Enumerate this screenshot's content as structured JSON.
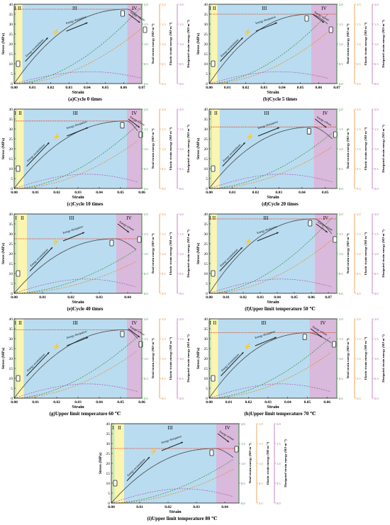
{
  "figure": {
    "xlabel": "Strain",
    "ylabel": "Stress (MPa)",
    "y2label": "Total strain energy (MJ·m⁻³)",
    "y3label": "Elastic strain energy (MJ·m⁻³)",
    "y4label": "Dissipated strain energy (MJ·m⁻³)",
    "stage_labels": [
      "I",
      "II",
      "III",
      "IV"
    ],
    "annotations": [
      "Energy accumulation",
      "Energy dissipation",
      "Energy release"
    ],
    "colors": {
      "stage_I": "#cfe8b4",
      "stage_II": "#fbf5b0",
      "stage_III": "#b9dcf0",
      "stage_IV": "#d9b9dc",
      "stress": "#555555",
      "peak_line": "#e03a1e",
      "total_energy": "#2e8b2e",
      "elastic_energy": "#e8821e",
      "dissipated_energy": "#b050b0"
    }
  },
  "chart_data": [
    {
      "caption": "(a)Cycle 0 times",
      "type": "line",
      "xlim": [
        0,
        0.07
      ],
      "xticks": [
        0.0,
        0.01,
        0.02,
        0.03,
        0.04,
        0.05,
        0.06,
        0.07
      ],
      "ylim": [
        0,
        40
      ],
      "yticks": [
        0,
        5,
        10,
        15,
        20,
        25,
        30,
        35,
        40
      ],
      "energy_ylim": [
        0,
        2.0
      ],
      "energy_yticks": [
        0.0,
        0.5,
        1.0,
        1.5,
        2.0
      ],
      "stage_bounds": [
        0.0012,
        0.0045,
        0.062
      ],
      "peak_strain": 0.062,
      "peak_stress": 37.5,
      "end_strain": 0.07,
      "end_stress": 32,
      "total_energy_end": 1.95,
      "elastic_energy_end": 1.4,
      "dissipated_energy_end": 0.25
    },
    {
      "caption": "(b)Cycle 5 times",
      "type": "line",
      "xlim": [
        0,
        0.07
      ],
      "xticks": [
        0.0,
        0.01,
        0.02,
        0.03,
        0.04,
        0.05,
        0.06,
        0.07
      ],
      "ylim": [
        0,
        40
      ],
      "yticks": [
        0,
        5,
        10,
        15,
        20,
        25,
        30,
        35,
        40
      ],
      "energy_ylim": [
        0,
        2.0
      ],
      "energy_yticks": [
        0.0,
        0.5,
        1.0,
        1.5,
        2.0
      ],
      "stage_bounds": [
        0.0012,
        0.0045,
        0.056
      ],
      "peak_strain": 0.056,
      "peak_stress": 35,
      "end_strain": 0.065,
      "end_stress": 30,
      "total_energy_end": 1.75,
      "elastic_energy_end": 1.3,
      "dissipated_energy_end": 0.25
    },
    {
      "caption": "(c)Cycle 10 times",
      "type": "line",
      "xlim": [
        0,
        0.06
      ],
      "xticks": [
        0.0,
        0.01,
        0.02,
        0.03,
        0.04,
        0.05,
        0.06
      ],
      "ylim": [
        0,
        40
      ],
      "yticks": [
        0,
        5,
        10,
        15,
        20,
        25,
        30,
        35,
        40
      ],
      "energy_ylim": [
        0,
        2.0
      ],
      "energy_yticks": [
        0.0,
        0.5,
        1.0,
        1.5,
        2.0
      ],
      "stage_bounds": [
        0.0012,
        0.0045,
        0.053
      ],
      "peak_strain": 0.053,
      "peak_stress": 34,
      "end_strain": 0.058,
      "end_stress": 29,
      "total_energy_end": 1.6,
      "elastic_energy_end": 1.2,
      "dissipated_energy_end": 0.3
    },
    {
      "caption": "(d)Cycle 20 times",
      "type": "line",
      "xlim": [
        0,
        0.055
      ],
      "xticks": [
        0.0,
        0.01,
        0.02,
        0.03,
        0.04,
        0.05
      ],
      "ylim": [
        0,
        40
      ],
      "yticks": [
        0,
        5,
        10,
        15,
        20,
        25,
        30,
        35,
        40
      ],
      "energy_ylim": [
        0,
        2.0
      ],
      "energy_yticks": [
        0.0,
        0.5,
        1.0,
        1.5,
        2.0
      ],
      "stage_bounds": [
        0.0012,
        0.0045,
        0.045
      ],
      "peak_strain": 0.045,
      "peak_stress": 31,
      "end_strain": 0.053,
      "end_stress": 25,
      "total_energy_end": 1.4,
      "elastic_energy_end": 1.05,
      "dissipated_energy_end": 0.3
    },
    {
      "caption": "(e)Cycle 40 times",
      "type": "line",
      "xlim": [
        0,
        0.045
      ],
      "xticks": [
        0.0,
        0.01,
        0.02,
        0.03,
        0.04
      ],
      "ylim": [
        0,
        40
      ],
      "yticks": [
        0,
        5,
        10,
        15,
        20,
        25,
        30,
        35,
        40
      ],
      "energy_ylim": [
        0,
        2.0
      ],
      "energy_yticks": [
        0.0,
        0.5,
        1.0,
        1.5,
        2.0
      ],
      "stage_bounds": [
        0.0012,
        0.0045,
        0.036
      ],
      "peak_strain": 0.036,
      "peak_stress": 27.5,
      "end_strain": 0.043,
      "end_stress": 22,
      "total_energy_end": 1.1,
      "elastic_energy_end": 0.8,
      "dissipated_energy_end": 0.3
    },
    {
      "caption": "(f)Upper limit temperature 50 ℃",
      "type": "line",
      "xlim": [
        0,
        0.075
      ],
      "xticks": [
        0.0,
        0.01,
        0.02,
        0.03,
        0.04,
        0.05,
        0.06,
        0.07
      ],
      "ylim": [
        0,
        40
      ],
      "yticks": [
        0,
        5,
        10,
        15,
        20,
        25,
        30,
        35,
        40
      ],
      "energy_ylim": [
        0,
        2.0
      ],
      "energy_yticks": [
        0.0,
        0.5,
        1.0,
        1.5,
        2.0
      ],
      "stage_bounds": [
        0.0012,
        0.0045,
        0.062
      ],
      "peak_strain": 0.062,
      "peak_stress": 37.5,
      "end_strain": 0.072,
      "end_stress": 30,
      "total_energy_end": 1.9,
      "elastic_energy_end": 1.35,
      "dissipated_energy_end": 0.3
    },
    {
      "caption": "(g)Upper limit temperature 60 ℃",
      "type": "line",
      "xlim": [
        0,
        0.06
      ],
      "xticks": [
        0.0,
        0.01,
        0.02,
        0.03,
        0.04,
        0.05,
        0.06
      ],
      "ylim": [
        0,
        40
      ],
      "yticks": [
        0,
        5,
        10,
        15,
        20,
        25,
        30,
        35,
        40
      ],
      "energy_ylim": [
        0,
        2.0
      ],
      "energy_yticks": [
        0.0,
        0.5,
        1.0,
        1.5,
        2.0
      ],
      "stage_bounds": [
        0.0012,
        0.0045,
        0.053
      ],
      "peak_strain": 0.053,
      "peak_stress": 34.5,
      "end_strain": 0.058,
      "end_stress": 30,
      "total_energy_end": 1.55,
      "elastic_energy_end": 1.2,
      "dissipated_energy_end": 0.3
    },
    {
      "caption": "(h)Upper limit temperature 70 ℃",
      "type": "line",
      "xlim": [
        0,
        0.065
      ],
      "xticks": [
        0.0,
        0.01,
        0.02,
        0.03,
        0.04,
        0.05,
        0.06
      ],
      "ylim": [
        0,
        40
      ],
      "yticks": [
        0,
        5,
        10,
        15,
        20,
        25,
        30,
        35,
        40
      ],
      "energy_ylim": [
        0,
        2.0
      ],
      "energy_yticks": [
        0.0,
        0.5,
        1.0,
        1.5,
        2.0
      ],
      "stage_bounds": [
        0.0012,
        0.0045,
        0.051
      ],
      "peak_strain": 0.051,
      "peak_stress": 33,
      "end_strain": 0.062,
      "end_stress": 28,
      "total_energy_end": 1.55,
      "elastic_energy_end": 1.15,
      "dissipated_energy_end": 0.3
    },
    {
      "caption": "(i)Upper limit temperature 80 ℃",
      "type": "line",
      "xlim": [
        0,
        0.045
      ],
      "xticks": [
        0.0,
        0.01,
        0.02,
        0.03,
        0.04
      ],
      "ylim": [
        0,
        40
      ],
      "yticks": [
        0,
        5,
        10,
        15,
        20,
        25,
        30,
        35,
        40
      ],
      "energy_ylim": [
        0,
        2.0
      ],
      "energy_yticks": [
        0.0,
        0.5,
        1.0,
        1.5,
        2.0
      ],
      "stage_bounds": [
        0.0012,
        0.0045,
        0.037
      ],
      "peak_strain": 0.037,
      "peak_stress": 27.5,
      "end_strain": 0.043,
      "end_stress": 23,
      "total_energy_end": 1.1,
      "elastic_energy_end": 0.85,
      "dissipated_energy_end": 0.3
    }
  ]
}
